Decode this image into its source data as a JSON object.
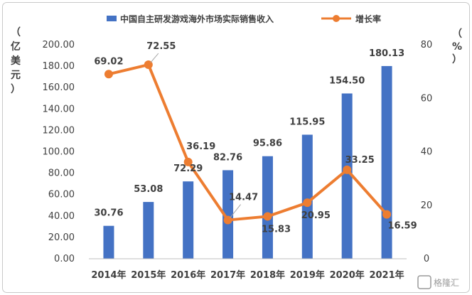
{
  "chart_data": {
    "type": "bar",
    "categories": [
      "2014年",
      "2015年",
      "2016年",
      "2017年",
      "2018年",
      "2019年",
      "2020年",
      "2021年"
    ],
    "series": [
      {
        "name": "中国自主研发游戏海外市场实际销售收入",
        "type": "bar",
        "axis": "left",
        "color": "#4472C4",
        "values": [
          30.76,
          53.08,
          72.29,
          82.76,
          95.86,
          115.95,
          154.5,
          180.13
        ]
      },
      {
        "name": "增长率",
        "type": "line",
        "axis": "right",
        "color": "#ED7D31",
        "values": [
          69.02,
          72.55,
          36.19,
          14.47,
          15.83,
          20.95,
          33.25,
          16.59
        ]
      }
    ],
    "bar_labels": [
      "30.76",
      "53.08",
      "72.29",
      "82.76",
      "95.86",
      "115.95",
      "154.50",
      "180.13"
    ],
    "line_labels": [
      "69.02",
      "72.55",
      "36.19",
      "14.47",
      "15.83",
      "20.95",
      "33.25",
      "16.59"
    ],
    "ylim_left": [
      0,
      200
    ],
    "ylim_right": [
      0,
      80
    ],
    "left_ticks": [
      "0.00",
      "20.00",
      "40.00",
      "60.00",
      "80.00",
      "100.00",
      "120.00",
      "140.00",
      "160.00",
      "180.00",
      "200.00"
    ],
    "right_ticks": [
      "0",
      "20",
      "40",
      "60",
      "80"
    ],
    "ylabel_left": [
      "（",
      "亿",
      "美",
      "元",
      "）"
    ],
    "ylabel_right": [
      "（",
      "%",
      "）"
    ],
    "legend_position": "top",
    "grid": false
  },
  "watermark": "格隆汇"
}
